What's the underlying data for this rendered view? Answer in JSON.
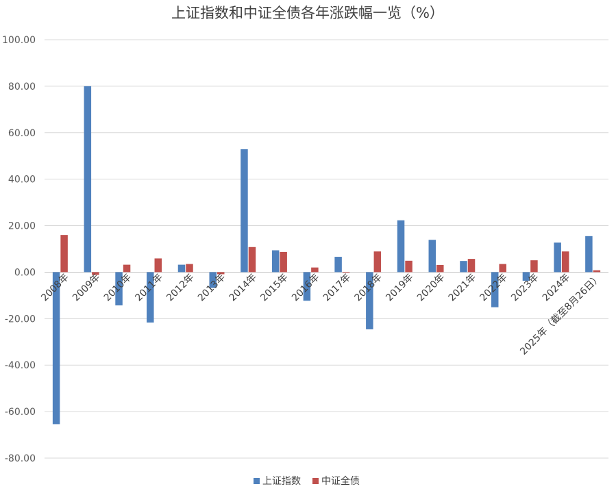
{
  "chart_data": {
    "type": "bar",
    "title": "上证指数和中证全债各年涨跌幅一览（%）",
    "categories": [
      "2008年",
      "2009年",
      "2010年",
      "2011年",
      "2012年",
      "2013年",
      "2014年",
      "2015年",
      "2016年",
      "2017年",
      "2018年",
      "2019年",
      "2020年",
      "2021年",
      "2022年",
      "2023年",
      "2024年",
      "2025年（截至8月26日）"
    ],
    "series": [
      {
        "name": "上证指数",
        "color": "#4f81bd",
        "values": [
          -65.4,
          80.0,
          -14.3,
          -21.7,
          3.2,
          -6.8,
          52.9,
          9.4,
          -12.3,
          6.6,
          -24.6,
          22.3,
          13.9,
          4.8,
          -15.1,
          -3.7,
          12.7,
          15.5
        ]
      },
      {
        "name": "中证全债",
        "color": "#c0504d",
        "values": [
          16.0,
          -1.2,
          3.2,
          5.9,
          3.5,
          -0.9,
          10.8,
          8.7,
          2.0,
          -0.3,
          8.9,
          4.9,
          3.1,
          5.7,
          3.5,
          5.1,
          8.9,
          0.8
        ]
      }
    ],
    "yticks": [
      "100.00",
      "80.00",
      "60.00",
      "40.00",
      "20.00",
      "0.00",
      "-20.00",
      "-40.00",
      "-60.00",
      "-80.00"
    ],
    "ylim": [
      -80,
      100
    ],
    "grid": true,
    "legend": "bottom"
  }
}
